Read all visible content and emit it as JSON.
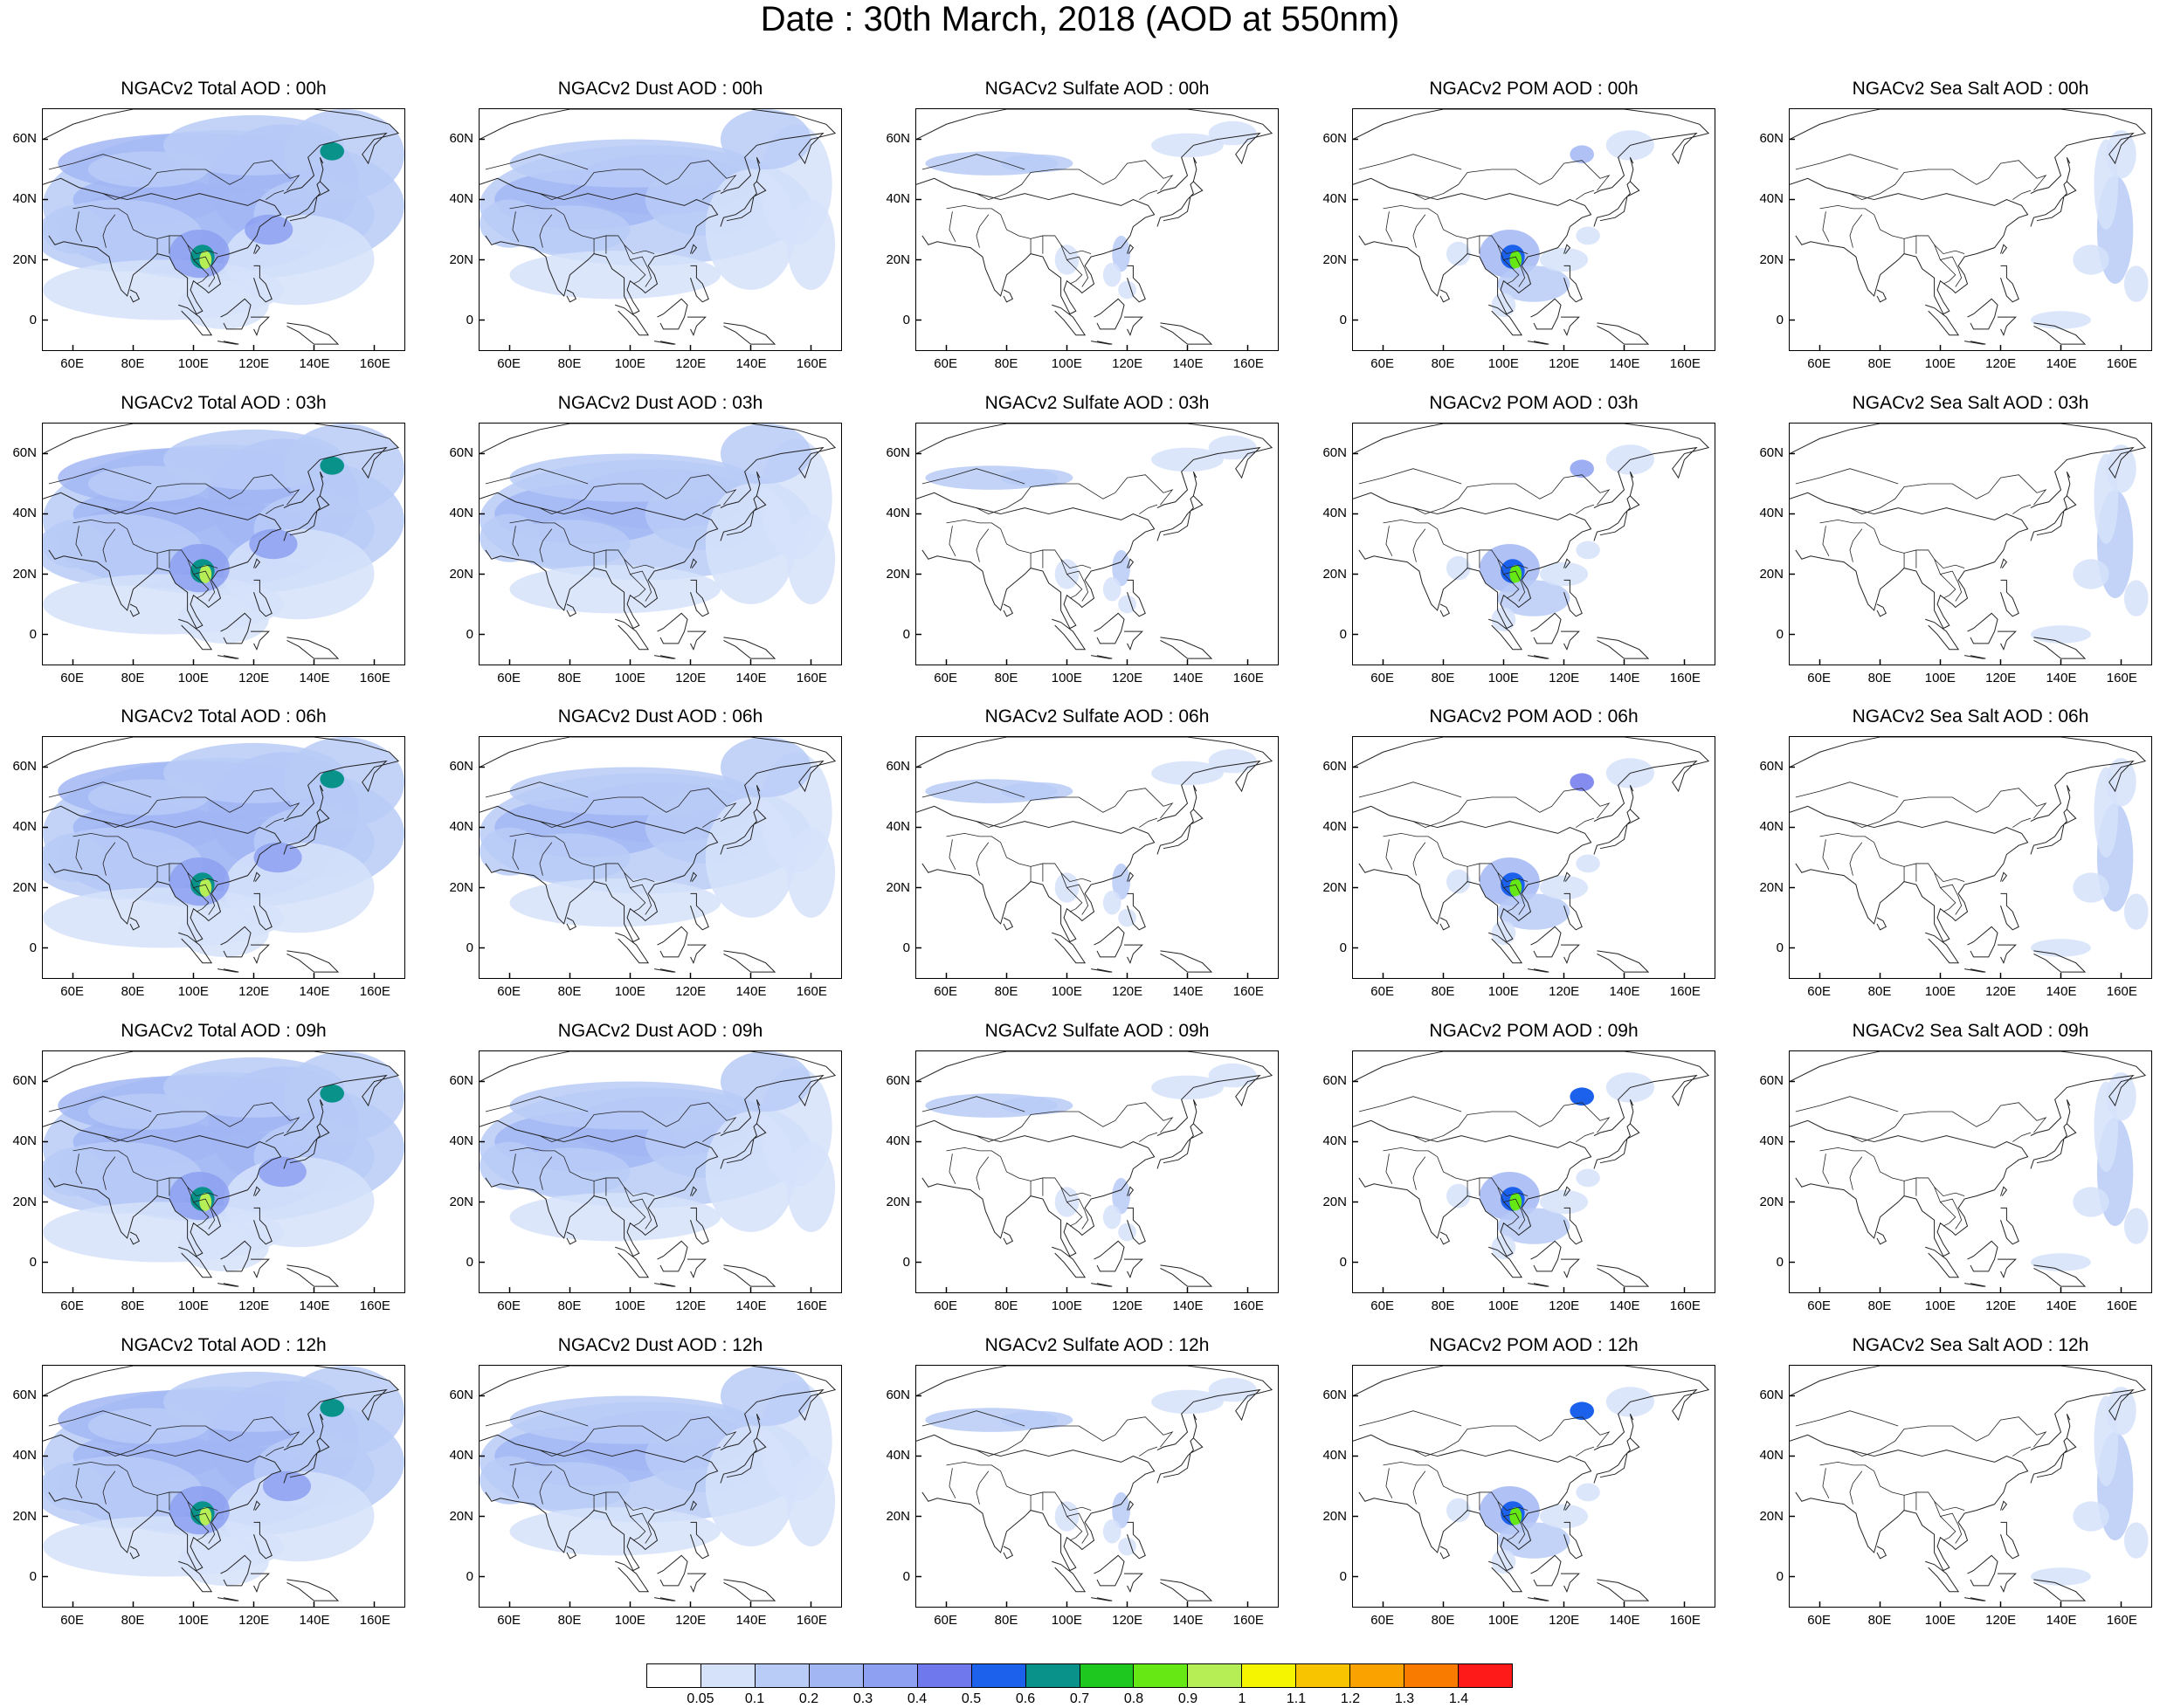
{
  "title": "Date : 30th March, 2018 (AOD at 550nm)",
  "chart_data": {
    "type": "heatmap",
    "layout": "5 rows x 5 columns of map panels",
    "panels": [
      {
        "row": 0,
        "col": 0,
        "title": "NGACv2 Total AOD : 00h",
        "species": "total",
        "hour": "00h"
      },
      {
        "row": 0,
        "col": 1,
        "title": "NGACv2 Dust AOD : 00h",
        "species": "dust",
        "hour": "00h"
      },
      {
        "row": 0,
        "col": 2,
        "title": "NGACv2 Sulfate AOD : 00h",
        "species": "sulfate",
        "hour": "00h"
      },
      {
        "row": 0,
        "col": 3,
        "title": "NGACv2 POM AOD : 00h",
        "species": "pom",
        "hour": "00h"
      },
      {
        "row": 0,
        "col": 4,
        "title": "NGACv2 Sea Salt AOD : 00h",
        "species": "seasalt",
        "hour": "00h"
      },
      {
        "row": 1,
        "col": 0,
        "title": "NGACv2 Total AOD : 03h",
        "species": "total",
        "hour": "03h"
      },
      {
        "row": 1,
        "col": 1,
        "title": "NGACv2 Dust AOD : 03h",
        "species": "dust",
        "hour": "03h"
      },
      {
        "row": 1,
        "col": 2,
        "title": "NGACv2 Sulfate AOD : 03h",
        "species": "sulfate",
        "hour": "03h"
      },
      {
        "row": 1,
        "col": 3,
        "title": "NGACv2 POM AOD : 03h",
        "species": "pom",
        "hour": "03h"
      },
      {
        "row": 1,
        "col": 4,
        "title": "NGACv2 Sea Salt AOD : 03h",
        "species": "seasalt",
        "hour": "03h"
      },
      {
        "row": 2,
        "col": 0,
        "title": "NGACv2 Total AOD : 06h",
        "species": "total",
        "hour": "06h"
      },
      {
        "row": 2,
        "col": 1,
        "title": "NGACv2 Dust AOD : 06h",
        "species": "dust",
        "hour": "06h"
      },
      {
        "row": 2,
        "col": 2,
        "title": "NGACv2 Sulfate AOD : 06h",
        "species": "sulfate",
        "hour": "06h"
      },
      {
        "row": 2,
        "col": 3,
        "title": "NGACv2 POM AOD : 06h",
        "species": "pom",
        "hour": "06h"
      },
      {
        "row": 2,
        "col": 4,
        "title": "NGACv2 Sea Salt AOD : 06h",
        "species": "seasalt",
        "hour": "06h"
      },
      {
        "row": 3,
        "col": 0,
        "title": "NGACv2 Total AOD : 09h",
        "species": "total",
        "hour": "09h"
      },
      {
        "row": 3,
        "col": 1,
        "title": "NGACv2 Dust AOD : 09h",
        "species": "dust",
        "hour": "09h"
      },
      {
        "row": 3,
        "col": 2,
        "title": "NGACv2 Sulfate AOD : 09h",
        "species": "sulfate",
        "hour": "09h"
      },
      {
        "row": 3,
        "col": 3,
        "title": "NGACv2 POM AOD : 09h",
        "species": "pom",
        "hour": "09h"
      },
      {
        "row": 3,
        "col": 4,
        "title": "NGACv2 Sea Salt  AOD : 09h",
        "species": "seasalt",
        "hour": "09h"
      },
      {
        "row": 4,
        "col": 0,
        "title": "NGACv2 Total AOD  : 12h",
        "species": "total",
        "hour": "12h"
      },
      {
        "row": 4,
        "col": 1,
        "title": "NGACv2 Dust AOD : 12h",
        "species": "dust",
        "hour": "12h"
      },
      {
        "row": 4,
        "col": 2,
        "title": "NGACv2 Sulfate AOD : 12h",
        "species": "sulfate",
        "hour": "12h"
      },
      {
        "row": 4,
        "col": 3,
        "title": "NGACv2 POM  AOD : 12h",
        "species": "pom",
        "hour": "12h"
      },
      {
        "row": 4,
        "col": 4,
        "title": "NGACv2 Sea Salt  AOD : 12h",
        "species": "seasalt",
        "hour": "12h"
      }
    ],
    "lat_ticks": [
      "60N",
      "40N",
      "20N",
      "0"
    ],
    "lat_values": [
      60,
      40,
      20,
      0
    ],
    "lon_ticks": [
      "60E",
      "80E",
      "100E",
      "120E",
      "140E",
      "160E"
    ],
    "lon_values": [
      60,
      80,
      100,
      120,
      140,
      160
    ],
    "xlim": [
      50,
      170
    ],
    "ylim": [
      -10,
      70
    ],
    "colorbar": {
      "levels": [
        "0.05",
        "0.1",
        "0.2",
        "0.3",
        "0.4",
        "0.5",
        "0.6",
        "0.7",
        "0.8",
        "0.9",
        "1",
        "1.1",
        "1.2",
        "1.3",
        "1.4"
      ],
      "colors": [
        "#ffffff",
        "#d6e2fa",
        "#b9cbf7",
        "#a2b6f4",
        "#8da0f1",
        "#6f78ec",
        "#1b61eb",
        "#08928a",
        "#1ec81e",
        "#66e814",
        "#b6ee56",
        "#f5f500",
        "#f8c400",
        "#f9a200",
        "#f97c00",
        "#ff1a1a"
      ]
    }
  }
}
